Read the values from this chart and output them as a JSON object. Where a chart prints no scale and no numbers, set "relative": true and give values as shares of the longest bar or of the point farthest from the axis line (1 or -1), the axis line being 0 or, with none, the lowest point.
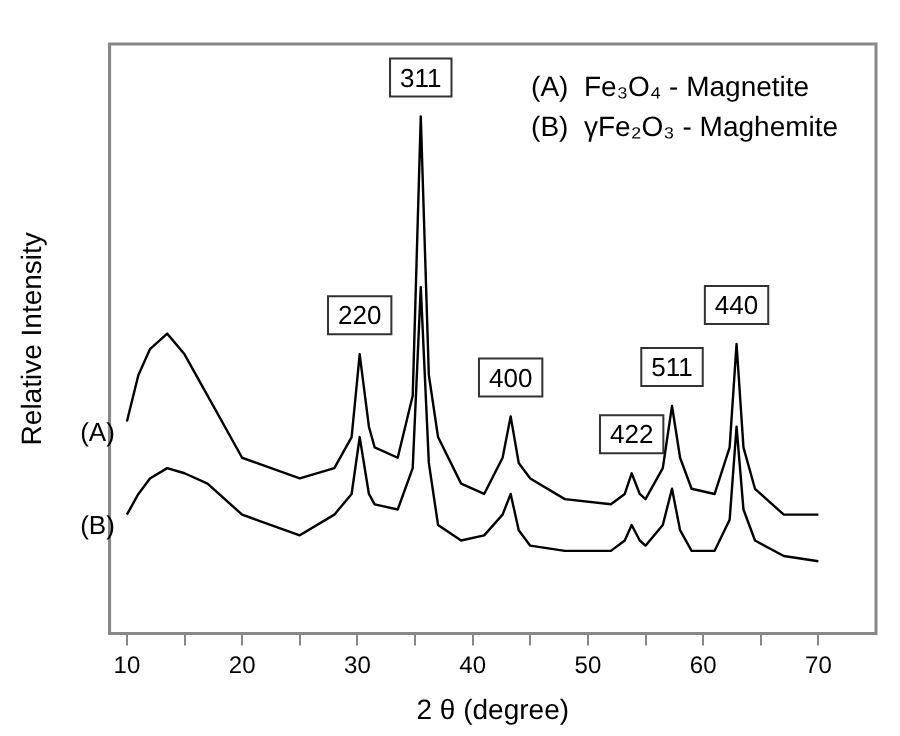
{
  "chart_data": {
    "type": "line",
    "relative": true,
    "xlabel": "2 θ (degree)",
    "ylabel": "Relative Intensity",
    "grid": false,
    "legend": false,
    "marker": "none",
    "line_style": "solid",
    "xlim": [
      8.5,
      75
    ],
    "xticks": [
      10,
      {
        "value": 15,
        "label": null
      },
      20,
      {
        "value": 25,
        "label": null
      },
      30,
      {
        "value": 35,
        "label": null
      },
      40,
      {
        "value": 45,
        "label": null
      },
      50,
      {
        "value": 55,
        "label": null
      },
      60,
      {
        "value": 65,
        "label": null
      },
      70
    ],
    "x": [
      10,
      11,
      12,
      13.5,
      15,
      17,
      20,
      25,
      28,
      29.5,
      30.2,
      31,
      31.5,
      33.5,
      34.8,
      35.5,
      36.2,
      37,
      39,
      41,
      42.6,
      43.3,
      44,
      45,
      48,
      52,
      53.2,
      53.8,
      54.5,
      55,
      56.5,
      57.3,
      58,
      59,
      61,
      62.3,
      62.9,
      63.5,
      64.5,
      67,
      70
    ],
    "series": [
      {
        "name": "(A)",
        "color": "#000000",
        "values": [
          0.41,
          0.5,
          0.55,
          0.58,
          0.54,
          0.46,
          0.34,
          0.3,
          0.32,
          0.38,
          0.54,
          0.4,
          0.36,
          0.34,
          0.46,
          1.0,
          0.5,
          0.38,
          0.29,
          0.27,
          0.34,
          0.42,
          0.33,
          0.3,
          0.26,
          0.25,
          0.27,
          0.31,
          0.27,
          0.26,
          0.32,
          0.44,
          0.34,
          0.28,
          0.27,
          0.36,
          0.56,
          0.36,
          0.28,
          0.23,
          0.23
        ]
      },
      {
        "name": "(B)",
        "color": "#000000",
        "values": [
          0.23,
          0.27,
          0.3,
          0.32,
          0.31,
          0.29,
          0.23,
          0.19,
          0.23,
          0.27,
          0.38,
          0.27,
          0.25,
          0.24,
          0.32,
          0.67,
          0.33,
          0.21,
          0.18,
          0.19,
          0.23,
          0.27,
          0.2,
          0.17,
          0.16,
          0.16,
          0.18,
          0.21,
          0.18,
          0.17,
          0.21,
          0.28,
          0.2,
          0.16,
          0.16,
          0.22,
          0.4,
          0.24,
          0.18,
          0.15,
          0.14
        ]
      }
    ],
    "annotations": [
      "(A)  Fe₃O₄ - Magnetite",
      "(B)  γFe₂O₃ - Maghemite",
      {
        "text": "220",
        "x": 30.2,
        "y": 0.54
      },
      {
        "text": "311",
        "x": 35.5,
        "y": 1.0
      },
      {
        "text": "400",
        "x": 43.3,
        "y": 0.42
      },
      {
        "text": "422",
        "x": 53.8,
        "y": 0.31
      },
      {
        "text": "511",
        "x": 57.3,
        "y": 0.44
      },
      {
        "text": "440",
        "x": 62.9,
        "y": 0.56
      }
    ]
  }
}
